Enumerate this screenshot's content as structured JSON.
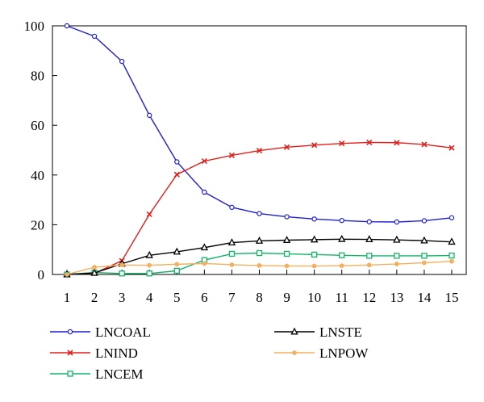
{
  "chart_data": {
    "type": "line",
    "title": "",
    "xlabel": "",
    "ylabel": "",
    "x": [
      1,
      2,
      3,
      4,
      5,
      6,
      7,
      8,
      9,
      10,
      11,
      12,
      13,
      14,
      15
    ],
    "xlim": [
      1,
      15
    ],
    "ylim": [
      0,
      100
    ],
    "yticks": [
      0,
      20,
      40,
      60,
      80,
      100
    ],
    "grid": false,
    "legend_position": "bottom",
    "series": [
      {
        "name": "LNCOAL",
        "color": "#1f1fd2",
        "marker": "circle",
        "values": [
          100,
          95.8,
          85.7,
          64.0,
          45.3,
          33.1,
          27.0,
          24.5,
          23.2,
          22.3,
          21.7,
          21.2,
          21.1,
          21.6,
          22.8
        ]
      },
      {
        "name": "LNIND",
        "color": "#e0201c",
        "marker": "x",
        "values": [
          0,
          0.5,
          5.5,
          24.2,
          40.2,
          45.6,
          47.9,
          49.8,
          51.2,
          52.0,
          52.7,
          53.1,
          53.0,
          52.3,
          50.9
        ]
      },
      {
        "name": "LNCEM",
        "color": "#14b36a",
        "marker": "square",
        "values": [
          0,
          0.8,
          0.4,
          0.4,
          1.5,
          5.8,
          8.3,
          8.6,
          8.3,
          8.0,
          7.7,
          7.5,
          7.5,
          7.5,
          7.6
        ]
      },
      {
        "name": "LNSTE",
        "color": "#000000",
        "marker": "triangle",
        "values": [
          0,
          0.6,
          4.3,
          7.7,
          9.1,
          10.8,
          12.8,
          13.5,
          13.8,
          14.0,
          14.2,
          14.1,
          13.9,
          13.6,
          13.1
        ]
      },
      {
        "name": "LNPOW",
        "color": "#f2b061",
        "marker": "diamond",
        "values": [
          0,
          2.9,
          3.8,
          3.7,
          4.1,
          4.4,
          3.9,
          3.6,
          3.4,
          3.4,
          3.5,
          3.8,
          4.2,
          4.7,
          5.3
        ]
      }
    ]
  }
}
